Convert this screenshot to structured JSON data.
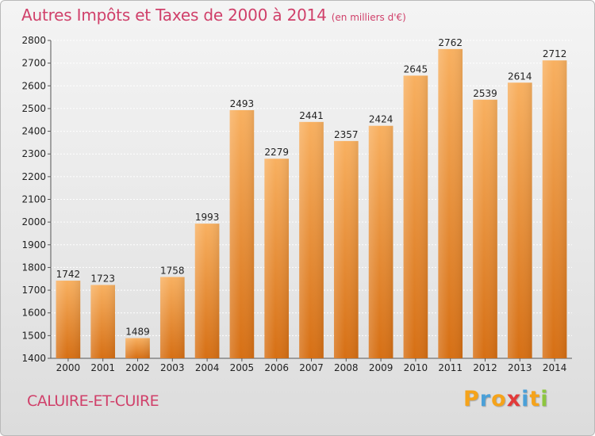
{
  "header": {
    "title": "Autres Impôts et Taxes de 2000 à 2014",
    "subtitle": "(en milliers d'€)"
  },
  "footer": {
    "city": "CALUIRE-ET-CUIRE",
    "logo_text": "Proxiti",
    "logo_letters": [
      {
        "char": "P",
        "color": "#f5a31a"
      },
      {
        "char": "r",
        "color": "#4aa0d8"
      },
      {
        "char": "o",
        "color": "#f5a31a"
      },
      {
        "char": "x",
        "color": "#e23a3a"
      },
      {
        "char": "i",
        "color": "#4aa0d8"
      },
      {
        "char": "t",
        "color": "#f5a31a"
      },
      {
        "char": "i",
        "color": "#8dc63f"
      }
    ]
  },
  "chart_data": {
    "type": "bar",
    "title": "Autres Impôts et Taxes de 2000 à 2014",
    "subtitle": "(en milliers d'€)",
    "xlabel": "",
    "ylabel": "",
    "categories": [
      "2000",
      "2001",
      "2002",
      "2003",
      "2004",
      "2005",
      "2006",
      "2007",
      "2008",
      "2009",
      "2010",
      "2011",
      "2012",
      "2013",
      "2014"
    ],
    "values": [
      1742,
      1723,
      1489,
      1758,
      1993,
      2493,
      2279,
      2441,
      2357,
      2424,
      2645,
      2762,
      2539,
      2614,
      2712
    ],
    "ylim": [
      1400,
      2800
    ],
    "yticks": [
      1400,
      1500,
      1600,
      1700,
      1800,
      1900,
      2000,
      2100,
      2200,
      2300,
      2400,
      2500,
      2600,
      2700,
      2800
    ],
    "grid": true,
    "bar_color": "#f0892a",
    "bar_color_light": "#f8b060",
    "bar_color_dark": "#d66f14"
  }
}
